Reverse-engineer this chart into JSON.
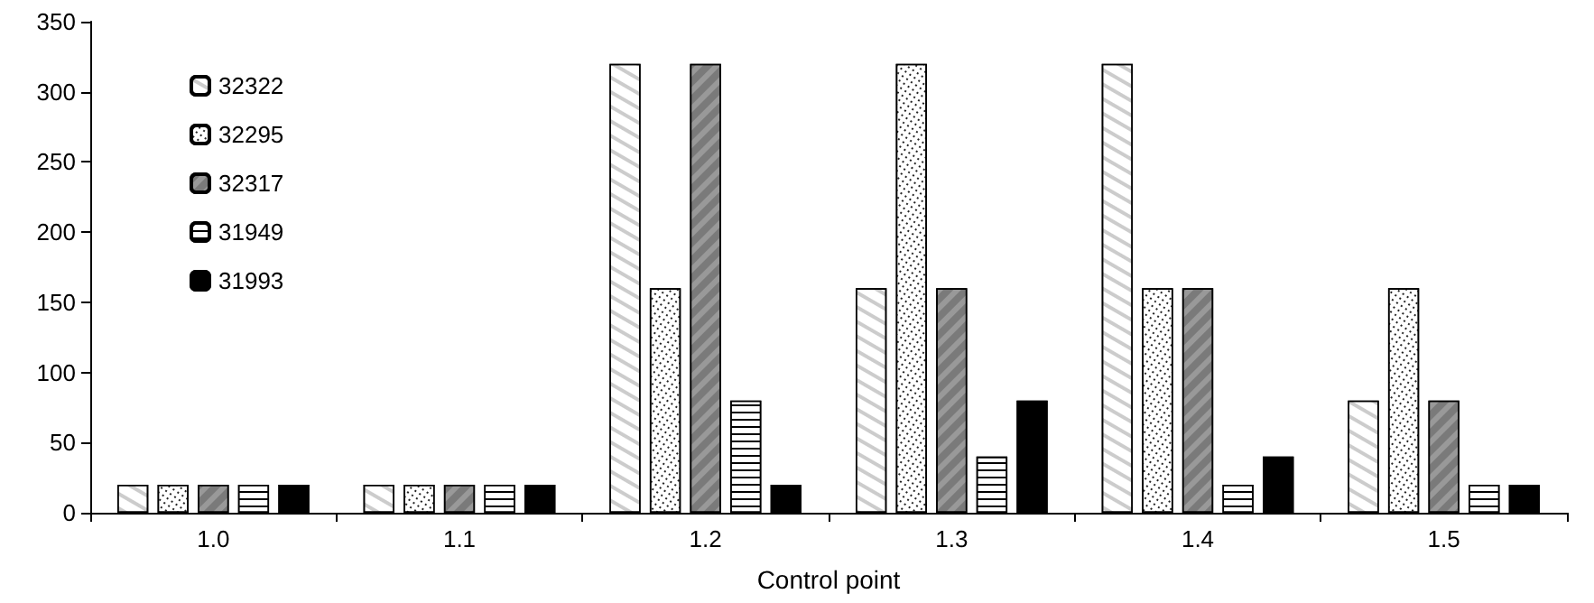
{
  "chart_data": {
    "type": "bar",
    "xlabel": "Control point",
    "categories": [
      "1.0",
      "1.1",
      "1.2",
      "1.3",
      "1.4",
      "1.5"
    ],
    "series": [
      {
        "name": "32322",
        "color": "#ffffff",
        "values": [
          20,
          20,
          320,
          160,
          320,
          80
        ]
      },
      {
        "name": "32295",
        "color": "#ffffff",
        "values": [
          20,
          20,
          160,
          320,
          160,
          160
        ]
      },
      {
        "name": "32317",
        "color": "#999999",
        "values": [
          20,
          20,
          320,
          160,
          160,
          80
        ]
      },
      {
        "name": "31949",
        "color": "#ffffff",
        "values": [
          20,
          20,
          80,
          40,
          20,
          20
        ]
      },
      {
        "name": "31993",
        "color": "#000000",
        "values": [
          20,
          20,
          20,
          80,
          40,
          20
        ]
      }
    ],
    "ylim": [
      0,
      350
    ],
    "yticks": [
      0,
      50,
      100,
      150,
      200,
      250,
      300,
      350
    ],
    "grid": false,
    "legend": "top left"
  }
}
